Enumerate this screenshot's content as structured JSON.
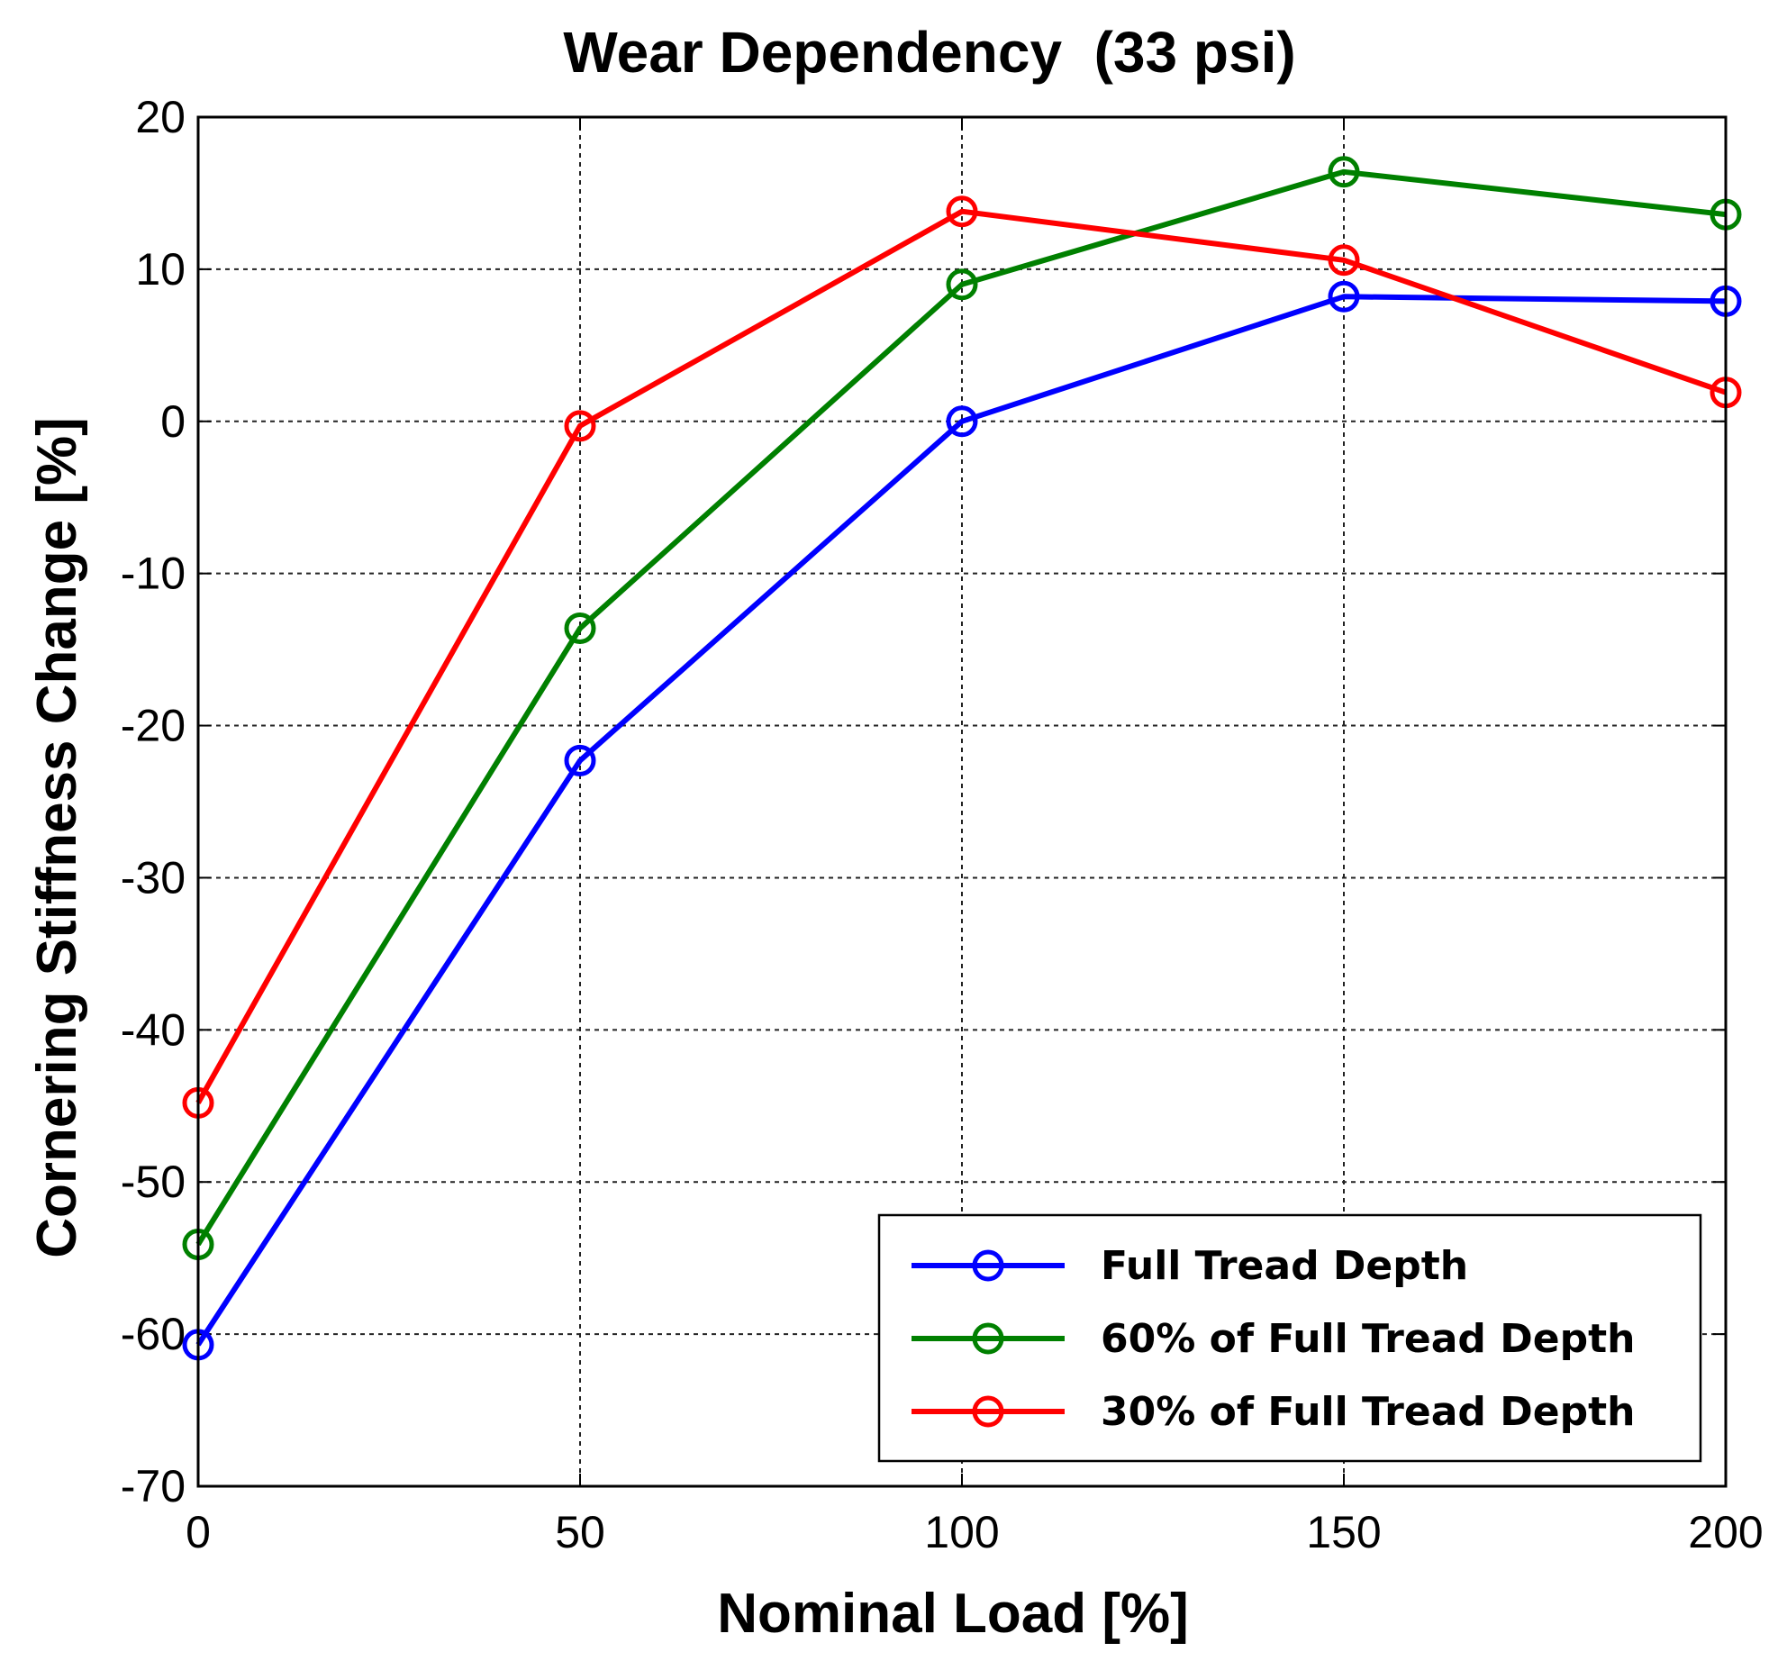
{
  "chart_data": {
    "type": "line",
    "title": "Wear Dependency  (33 psi)",
    "xlabel": "Nominal Load [%]",
    "ylabel": "Cornering Stiffness Change [%]",
    "x": [
      0,
      50,
      100,
      150,
      200
    ],
    "xlim": [
      0,
      200
    ],
    "ylim": [
      -70,
      20
    ],
    "xticks": [
      "0",
      "50",
      "100",
      "150",
      "200"
    ],
    "yticks": [
      "20",
      "10",
      "0",
      "-10",
      "-20",
      "-30",
      "-40",
      "-50",
      "-60",
      "-70"
    ],
    "grid": true,
    "legend_position": "bottom-right",
    "series": [
      {
        "name": "Full Tread Depth",
        "color": "#0000ff",
        "values": [
          -60.7,
          -22.3,
          0.0,
          8.2,
          7.9
        ]
      },
      {
        "name": "60% of Full Tread Depth",
        "color": "#008000",
        "values": [
          -54.1,
          -13.6,
          9.0,
          16.4,
          13.6
        ]
      },
      {
        "name": "30% of Full Tread Depth",
        "color": "#ff0000",
        "values": [
          -44.8,
          -0.3,
          13.8,
          10.6,
          1.9
        ]
      }
    ]
  }
}
